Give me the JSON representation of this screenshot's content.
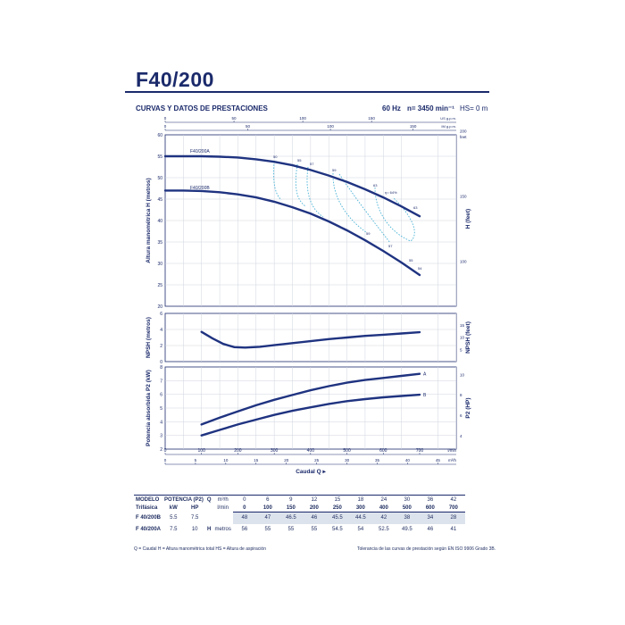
{
  "header": {
    "title": "F40/200",
    "subtitle": "CURVAS Y DATOS DE PRESTACIONES",
    "hz": "60 Hz",
    "speed": "n= 3450 min⁻¹",
    "hs": "HS= 0 m"
  },
  "chart_data": [
    {
      "type": "line",
      "name": "head",
      "ylabel": "Altura manométrica H  (metros)",
      "ylabel_right": "H (feet)",
      "xlim": [
        0,
        700
      ],
      "ylim": [
        20,
        60
      ],
      "yticks": [
        "20",
        "25",
        "30",
        "35",
        "40",
        "45",
        "50",
        "55",
        "60"
      ],
      "yticks_right": [
        "100",
        "150",
        "200"
      ],
      "feet_label": "feet",
      "top_axes": [
        {
          "unit": "US g.p.m.",
          "ticks": [
            "0",
            "50",
            "100",
            "150"
          ]
        },
        {
          "unit": "IM g.p.m.",
          "ticks": [
            "0",
            "50",
            "100",
            "150"
          ]
        }
      ],
      "series": [
        {
          "name": "F40/200A",
          "x": [
            0,
            50,
            100,
            150,
            200,
            250,
            300,
            350,
            400,
            450,
            500,
            550,
            600,
            650,
            700
          ],
          "y": [
            55,
            55,
            55,
            54.9,
            54.7,
            54.3,
            53.7,
            52.9,
            51.8,
            50.5,
            49,
            47.3,
            45.4,
            43.3,
            41
          ]
        },
        {
          "name": "F40/200B",
          "x": [
            0,
            50,
            100,
            150,
            200,
            250,
            300,
            350,
            400,
            450,
            500,
            550,
            600,
            650,
            700
          ],
          "y": [
            47,
            47,
            46.9,
            46.6,
            46.1,
            45.4,
            44.4,
            43.1,
            41.6,
            39.8,
            37.7,
            35.4,
            32.9,
            30.2,
            27.3
          ]
        }
      ],
      "iso_efficiency": [
        "50",
        "55",
        "57",
        "59",
        "63",
        "η= 64%",
        "63",
        "59",
        "57",
        "55",
        "54"
      ]
    },
    {
      "type": "line",
      "name": "npsh",
      "ylabel": "NPSH  (metros)",
      "ylabel_right": "NPSH (feet)",
      "ylim": [
        0,
        6
      ],
      "yticks": [
        "0",
        "2",
        "4",
        "6"
      ],
      "yticks_right": [
        "5",
        "10",
        "15"
      ],
      "series": [
        {
          "x": [
            100,
            130,
            160,
            190,
            220,
            260,
            300,
            350,
            400,
            450,
            500,
            550,
            600,
            650,
            700
          ],
          "y": [
            3.7,
            2.9,
            2.2,
            1.8,
            1.75,
            1.85,
            2.05,
            2.3,
            2.55,
            2.8,
            3.0,
            3.2,
            3.35,
            3.5,
            3.65
          ]
        }
      ]
    },
    {
      "type": "line",
      "name": "power",
      "ylabel": "Potencia absorbida P2  (kW)",
      "ylabel_right": "P2 (HP)",
      "ylim": [
        2,
        8
      ],
      "yticks": [
        "2",
        "3",
        "4",
        "5",
        "6",
        "7",
        "8"
      ],
      "yticks_right": [
        "4",
        "6",
        "8",
        "10"
      ],
      "xlabel": "Caudal Q",
      "xticks": [
        "0",
        "100",
        "200",
        "300",
        "400",
        "500",
        "600",
        "700"
      ],
      "xunit_lmin": "l/min",
      "xticks_m3h": [
        "0",
        "5",
        "10",
        "15",
        "20",
        "25",
        "30",
        "35",
        "40",
        "45"
      ],
      "xunit_m3h": "m³/h",
      "series": [
        {
          "name": "A",
          "x": [
            100,
            150,
            200,
            250,
            300,
            350,
            400,
            450,
            500,
            550,
            600,
            650,
            700
          ],
          "y": [
            3.8,
            4.3,
            4.75,
            5.2,
            5.6,
            5.95,
            6.3,
            6.6,
            6.85,
            7.05,
            7.2,
            7.35,
            7.5
          ]
        },
        {
          "name": "B",
          "x": [
            100,
            150,
            200,
            250,
            300,
            350,
            400,
            450,
            500,
            550,
            600,
            650,
            700
          ],
          "y": [
            3.0,
            3.4,
            3.8,
            4.15,
            4.5,
            4.8,
            5.05,
            5.3,
            5.5,
            5.65,
            5.78,
            5.88,
            5.97
          ]
        }
      ]
    }
  ],
  "table": {
    "h_modelo": "MODELO",
    "h_trifasica": "Trifásica",
    "h_potencia": "POTENCIA (P2)",
    "h_kw": "kW",
    "h_hp": "HP",
    "h_q": "Q",
    "h_m3h": "m³/h",
    "h_lmin": "l/min",
    "h_h": "H",
    "h_metros": "metros",
    "q_m3h": [
      "0",
      "6",
      "9",
      "12",
      "15",
      "18",
      "24",
      "30",
      "36",
      "42"
    ],
    "q_lmin": [
      "0",
      "100",
      "150",
      "200",
      "250",
      "300",
      "400",
      "500",
      "600",
      "700"
    ],
    "rows": [
      {
        "model": "F 40/200B",
        "kw": "5.5",
        "hp": "7.5",
        "h": [
          "48",
          "47",
          "46.5",
          "46",
          "45.5",
          "44.5",
          "42",
          "38",
          "34",
          "28"
        ]
      },
      {
        "model": "F 40/200A",
        "kw": "7.5",
        "hp": "10",
        "h": [
          "56",
          "55",
          "55",
          "55",
          "54.5",
          "54",
          "52.5",
          "49.5",
          "46",
          "41"
        ]
      }
    ]
  },
  "footer": {
    "left": "Q = Caudal  H = Altura manométrica total  HS = Altura de aspiración",
    "right": "Tolerancia de las curvas de prestación según EN ISO 9906 Grado 3B."
  },
  "colors": {
    "navy": "#1b2a6b",
    "curve": "#1f3380",
    "iso": "#4bb3d6",
    "grid": "#cfd4de",
    "shade": "#dde3ec"
  }
}
